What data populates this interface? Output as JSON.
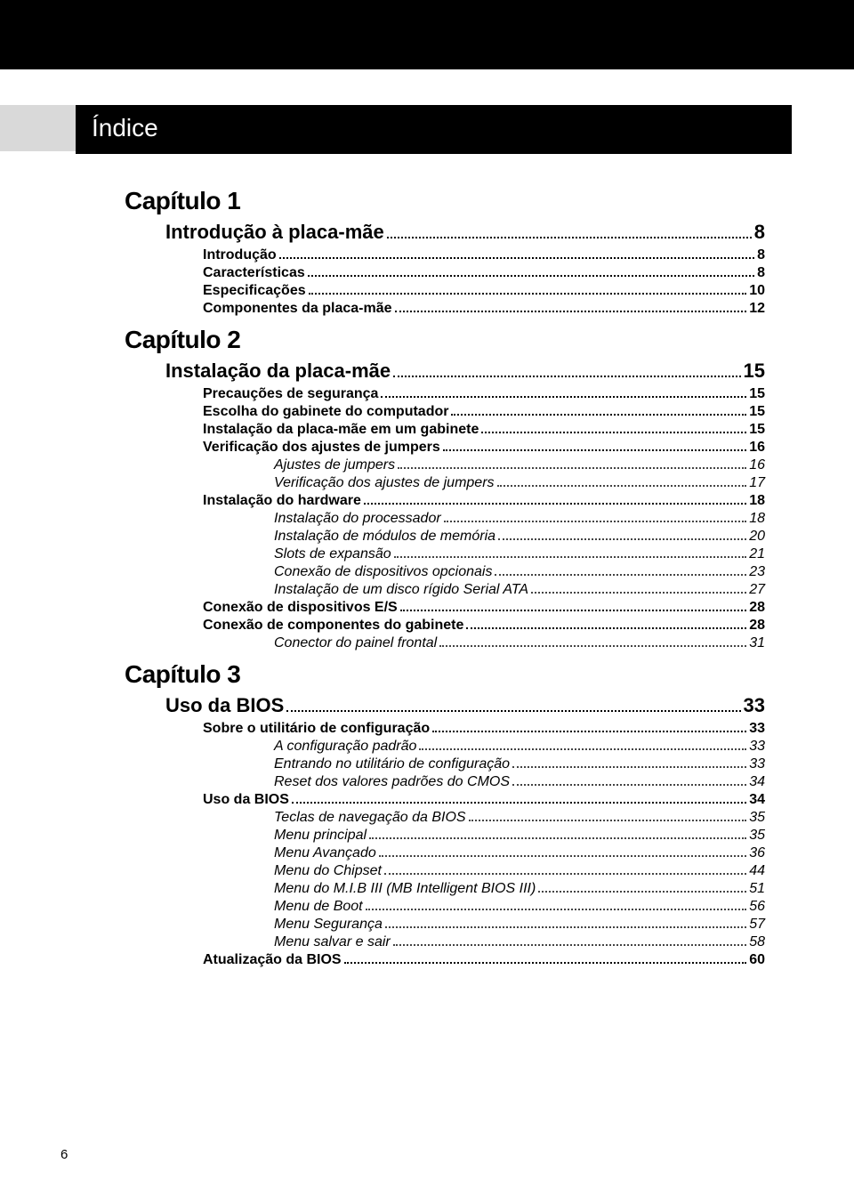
{
  "page_number": "6",
  "header": {
    "title": "Índice"
  },
  "colors": {
    "top_bar": "#000000",
    "header_gray": "#d9d9d9",
    "header_black": "#000000",
    "text": "#000000",
    "background": "#ffffff"
  },
  "chapters": [
    {
      "heading": "Capítulo 1",
      "section": {
        "label": "Introdução à placa-mãe",
        "page": "8"
      },
      "entries": [
        {
          "label": "Introdução",
          "page": "8",
          "level": 1,
          "style": "bold"
        },
        {
          "label": "Características",
          "page": "8",
          "level": 1,
          "style": "bold"
        },
        {
          "label": "Especificações",
          "page": "10",
          "level": 1,
          "style": "bold"
        },
        {
          "label": "Componentes da placa-mãe",
          "page": "12",
          "level": 1,
          "style": "bold"
        }
      ]
    },
    {
      "heading": "Capítulo 2",
      "section": {
        "label": "Instalação da placa-mãe",
        "page": "15"
      },
      "entries": [
        {
          "label": "Precauções de segurança",
          "page": "15",
          "level": 1,
          "style": "bold"
        },
        {
          "label": "Escolha do gabinete do computador",
          "page": "15",
          "level": 1,
          "style": "bold"
        },
        {
          "label": "Instalação da placa-mãe em um gabinete",
          "page": "15",
          "level": 1,
          "style": "bold"
        },
        {
          "label": "Verificação dos ajustes de jumpers",
          "page": "16",
          "level": 1,
          "style": "bold"
        },
        {
          "label": "Ajustes de jumpers",
          "page": "16",
          "level": 2,
          "style": "italic"
        },
        {
          "label": "Verificação dos ajustes de jumpers",
          "page": "17",
          "level": 2,
          "style": "italic"
        },
        {
          "label": "Instalação do hardware",
          "page": "18",
          "level": 1,
          "style": "bold"
        },
        {
          "label": "Instalação do processador",
          "page": "18",
          "level": 2,
          "style": "italic"
        },
        {
          "label": "Instalação de módulos de memória",
          "page": "20",
          "level": 2,
          "style": "italic"
        },
        {
          "label": "Slots de expansão",
          "page": "21",
          "level": 2,
          "style": "italic"
        },
        {
          "label": "Conexão de dispositivos opcionais",
          "page": "23",
          "level": 2,
          "style": "italic"
        },
        {
          "label": "Instalação de um disco rígido Serial ATA",
          "page": "27",
          "level": 2,
          "style": "italic"
        },
        {
          "label": "Conexão de dispositivos E/S",
          "page": "28",
          "level": 1,
          "style": "bold"
        },
        {
          "label": "Conexão de componentes do gabinete",
          "page": "28",
          "level": 1,
          "style": "bold"
        },
        {
          "label": "Conector do painel frontal",
          "page": "31",
          "level": 2,
          "style": "italic"
        }
      ]
    },
    {
      "heading": "Capítulo 3",
      "section": {
        "label": "Uso da BIOS",
        "page": "33"
      },
      "entries": [
        {
          "label": "Sobre o utilitário de configuração",
          "page": "33",
          "level": 1,
          "style": "bold"
        },
        {
          "label": "A configuração padrão",
          "page": "33",
          "level": 2,
          "style": "italic"
        },
        {
          "label": "Entrando no utilitário de configuração",
          "page": "33",
          "level": 2,
          "style": "italic"
        },
        {
          "label": "Reset dos valores padrões do CMOS",
          "page": "34",
          "level": 2,
          "style": "italic"
        },
        {
          "label": "Uso da BIOS",
          "page": "34",
          "level": 1,
          "style": "bold"
        },
        {
          "label": "Teclas de navegação da BIOS",
          "page": "35",
          "level": 2,
          "style": "italic"
        },
        {
          "label": "Menu principal",
          "page": "35",
          "level": 2,
          "style": "italic"
        },
        {
          "label": "Menu Avançado",
          "page": "36",
          "level": 2,
          "style": "italic"
        },
        {
          "label": "Menu do Chipset",
          "page": "44",
          "level": 2,
          "style": "italic"
        },
        {
          "label": "Menu do M.I.B III (MB Intelligent BIOS III)",
          "page": "51",
          "level": 2,
          "style": "italic"
        },
        {
          "label": "Menu de Boot",
          "page": "56",
          "level": 2,
          "style": "italic"
        },
        {
          "label": "Menu Segurança",
          "page": "57",
          "level": 2,
          "style": "italic"
        },
        {
          "label": "Menu salvar e sair",
          "page": "58",
          "level": 2,
          "style": "italic"
        },
        {
          "label": "Atualização da BIOS",
          "page": "60",
          "level": 1,
          "style": "bold"
        }
      ]
    }
  ]
}
